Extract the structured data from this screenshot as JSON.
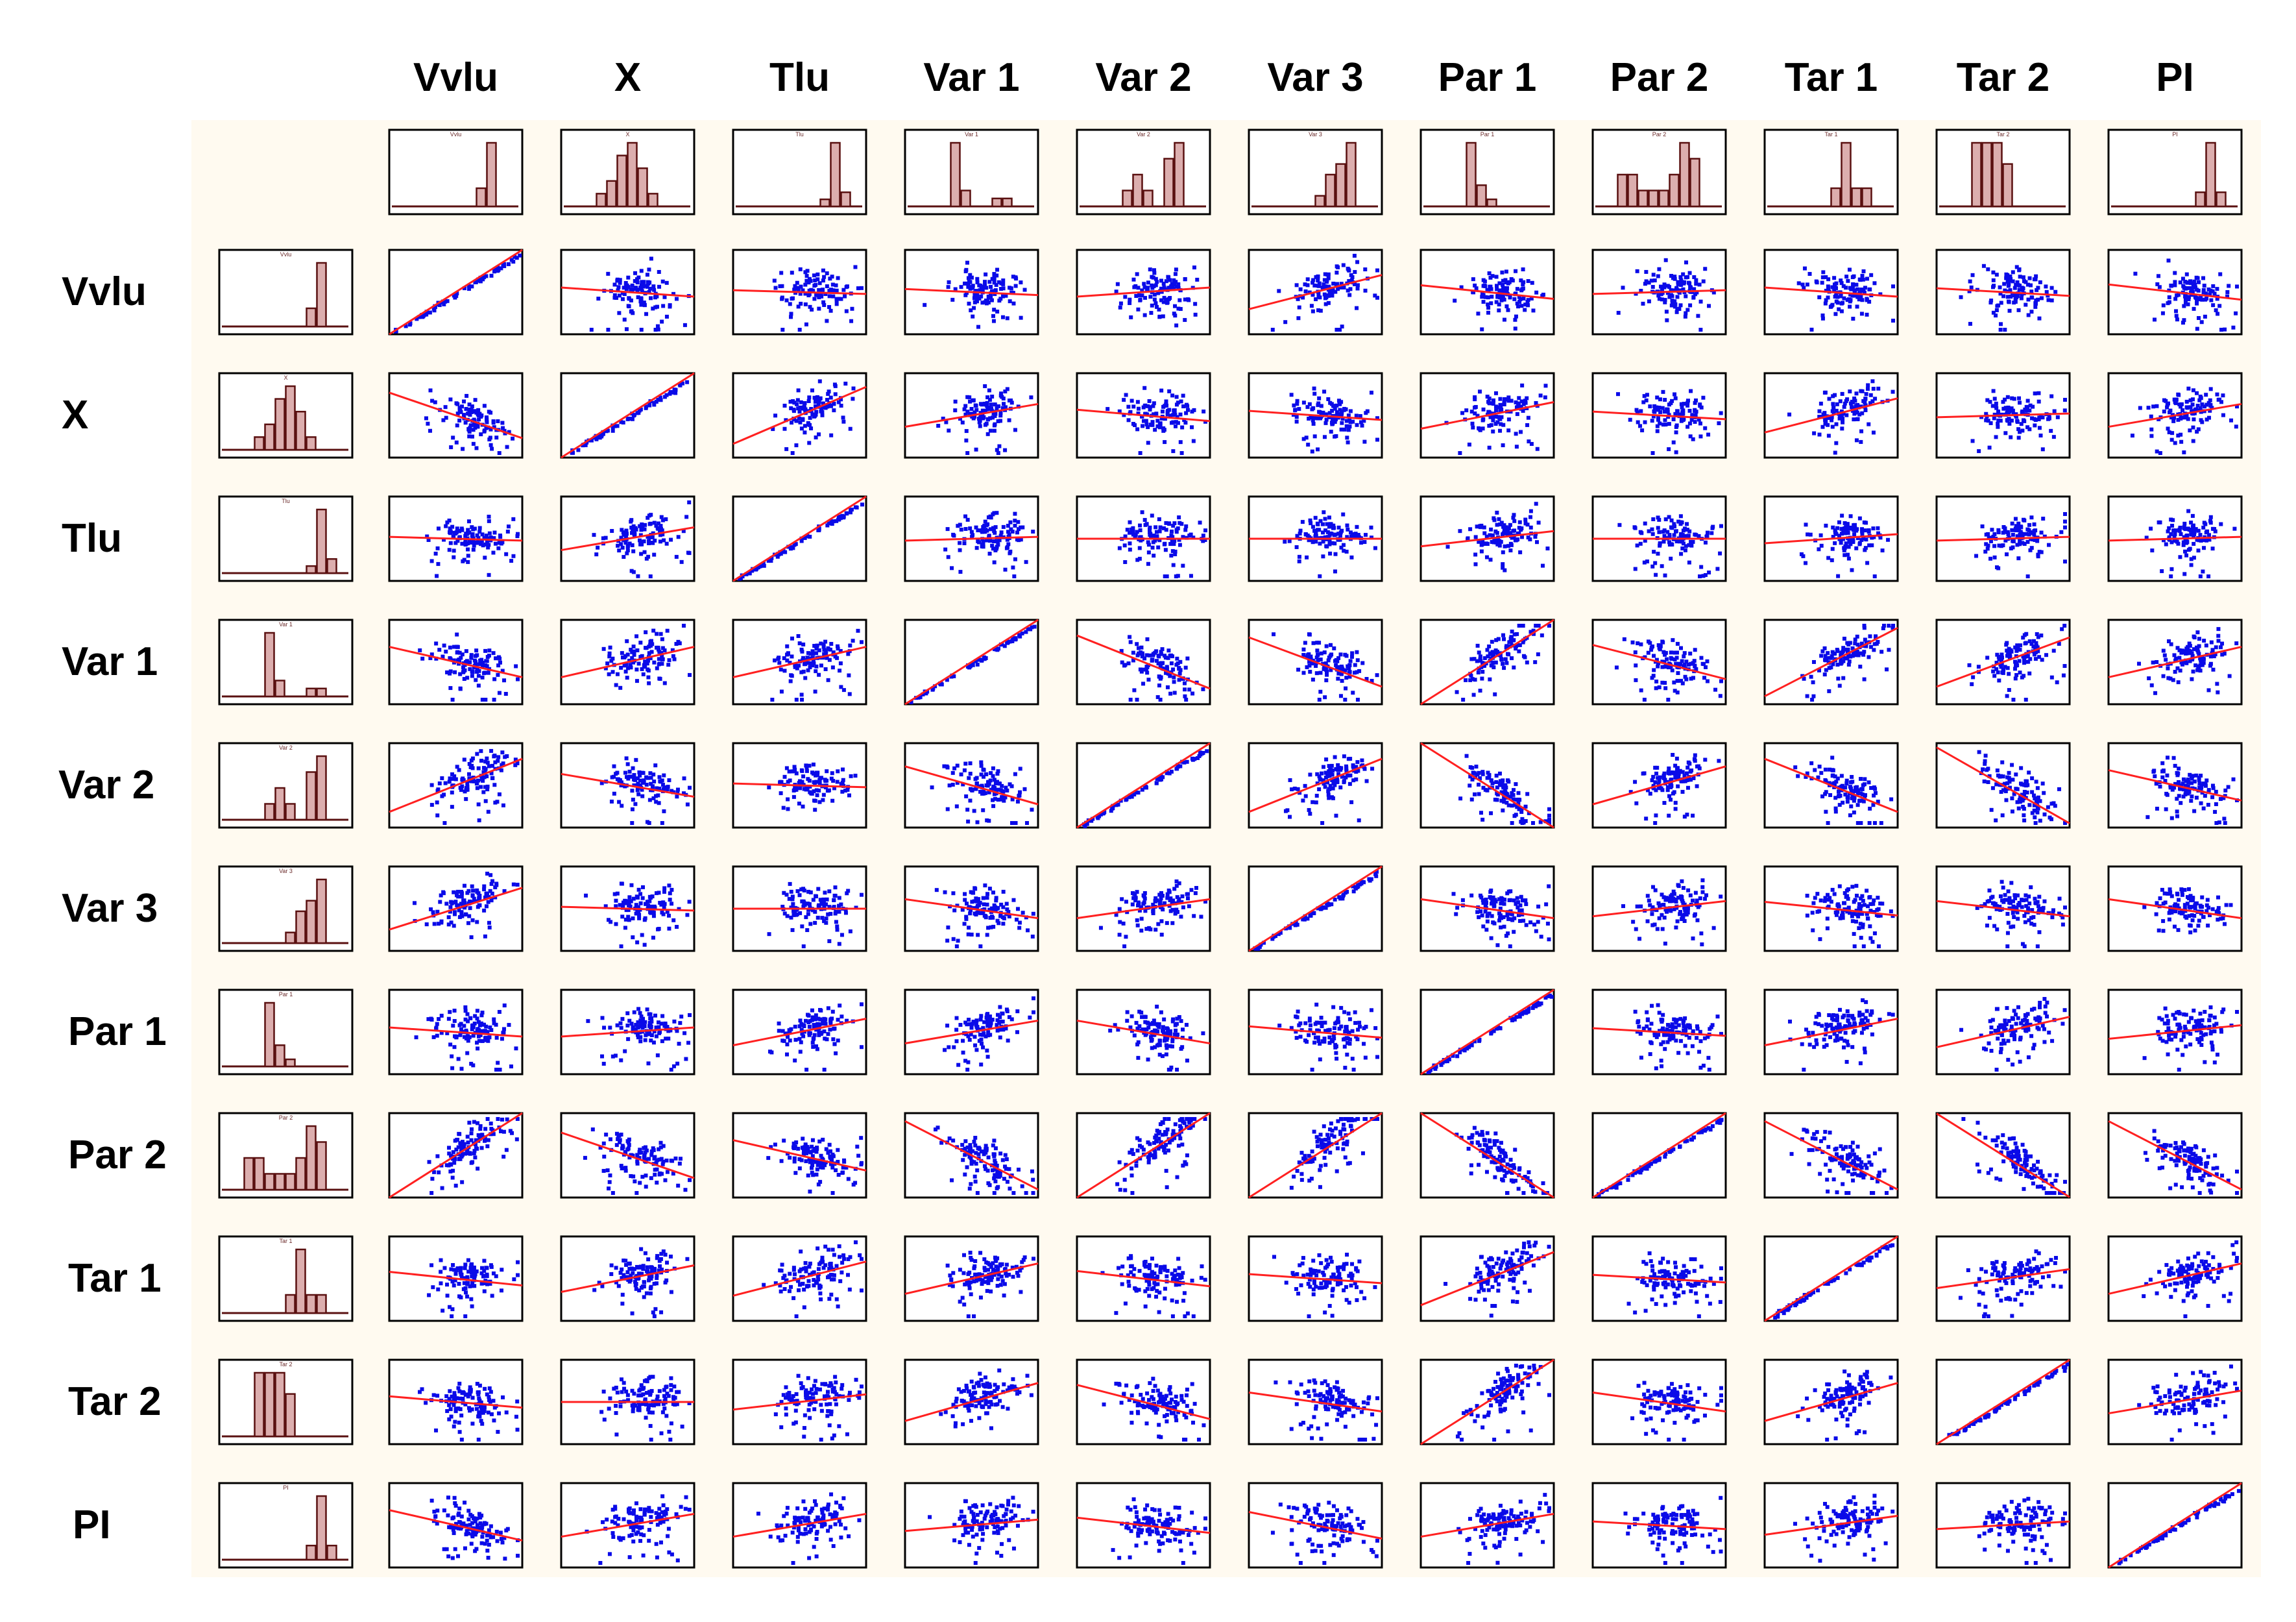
{
  "variables": [
    "Vvlu",
    "X",
    "Tlu",
    "Var 1",
    "Var 2",
    "Var 3",
    "Par 1",
    "Par 2",
    "Tar 1",
    "Tar 2",
    "PI"
  ],
  "chart_data": {
    "type": "scatter",
    "title": "",
    "variables": [
      "Vvlu",
      "X",
      "Tlu",
      "Var 1",
      "Var 2",
      "Var 3",
      "Par 1",
      "Par 2",
      "Tar 1",
      "Tar 2",
      "PI"
    ],
    "histograms": [
      {
        "variable": "Vvlu",
        "values": [
          0,
          0,
          0,
          0,
          0,
          0,
          2,
          7,
          0
        ]
      },
      {
        "variable": "X",
        "values": [
          0,
          1,
          2,
          4,
          5,
          3,
          1,
          0,
          0
        ]
      },
      {
        "variable": "Tlu",
        "values": [
          0,
          0,
          0,
          0,
          0,
          0,
          1,
          9,
          2
        ]
      },
      {
        "variable": "Var 1",
        "values": [
          0,
          0,
          8,
          2,
          0,
          0,
          1,
          1,
          0
        ]
      },
      {
        "variable": "Var 2",
        "values": [
          0,
          0,
          1,
          2,
          1,
          0,
          3,
          4,
          0
        ]
      },
      {
        "variable": "Var 3",
        "values": [
          0,
          0,
          0,
          0,
          1,
          3,
          4,
          6,
          0
        ]
      },
      {
        "variable": "Par 1",
        "values": [
          0,
          0,
          9,
          3,
          1,
          0,
          0,
          0,
          0
        ]
      },
      {
        "variable": "Par 2",
        "values": [
          2,
          2,
          1,
          1,
          1,
          2,
          4,
          3,
          0
        ]
      },
      {
        "variable": "Tar 1",
        "values": [
          0,
          0,
          0,
          0,
          2,
          7,
          2,
          2,
          0
        ]
      },
      {
        "variable": "Tar 2",
        "values": [
          0,
          3,
          3,
          3,
          2,
          0,
          0,
          0,
          0
        ]
      },
      {
        "variable": "PI",
        "values": [
          0,
          0,
          0,
          0,
          0,
          0,
          2,
          9,
          2
        ]
      }
    ],
    "regression_slopes": [
      [
        1.0,
        -0.12,
        -0.05,
        -0.08,
        0.12,
        0.45,
        -0.18,
        0.05,
        -0.12,
        -0.1,
        -0.2
      ],
      [
        -0.6,
        1.0,
        0.75,
        0.3,
        -0.15,
        -0.12,
        0.35,
        -0.1,
        0.45,
        0.05,
        0.3
      ],
      [
        -0.05,
        0.3,
        1.0,
        0.05,
        0.0,
        0.0,
        0.2,
        0.0,
        0.12,
        0.05,
        0.05
      ],
      [
        -0.4,
        0.4,
        0.4,
        1.0,
        -0.7,
        -0.65,
        1.3,
        -0.45,
        0.9,
        0.65,
        0.4
      ],
      [
        0.7,
        -0.3,
        -0.05,
        -0.5,
        1.0,
        0.7,
        -1.3,
        0.5,
        -0.7,
        -1.0,
        -0.4
      ],
      [
        0.55,
        -0.05,
        0.0,
        -0.25,
        0.25,
        1.0,
        -0.25,
        0.2,
        -0.18,
        -0.2,
        -0.25
      ],
      [
        -0.12,
        0.12,
        0.35,
        0.3,
        -0.3,
        -0.15,
        1.0,
        -0.1,
        0.35,
        0.4,
        0.18
      ],
      [
        1.2,
        -0.6,
        -0.4,
        -0.9,
        1.2,
        1.6,
        -1.3,
        1.0,
        -0.9,
        -1.1,
        -0.9
      ],
      [
        -0.18,
        0.35,
        0.45,
        0.4,
        -0.2,
        -0.12,
        0.7,
        -0.1,
        1.0,
        0.25,
        0.4
      ],
      [
        -0.15,
        0.0,
        0.2,
        0.5,
        -0.45,
        -0.25,
        1.2,
        -0.25,
        0.5,
        1.0,
        0.3
      ],
      [
        -0.4,
        0.3,
        0.3,
        0.15,
        -0.2,
        -0.35,
        0.3,
        -0.1,
        0.25,
        0.1,
        1.0
      ]
    ],
    "grid": false,
    "legend": "none",
    "colors": {
      "background": "#fffaf0",
      "points": "#0a0ae8",
      "regression_line": "#ff2020",
      "histogram_bar": "#dcaeae",
      "histogram_edge": "#5a1010",
      "frame": "#000000"
    }
  }
}
